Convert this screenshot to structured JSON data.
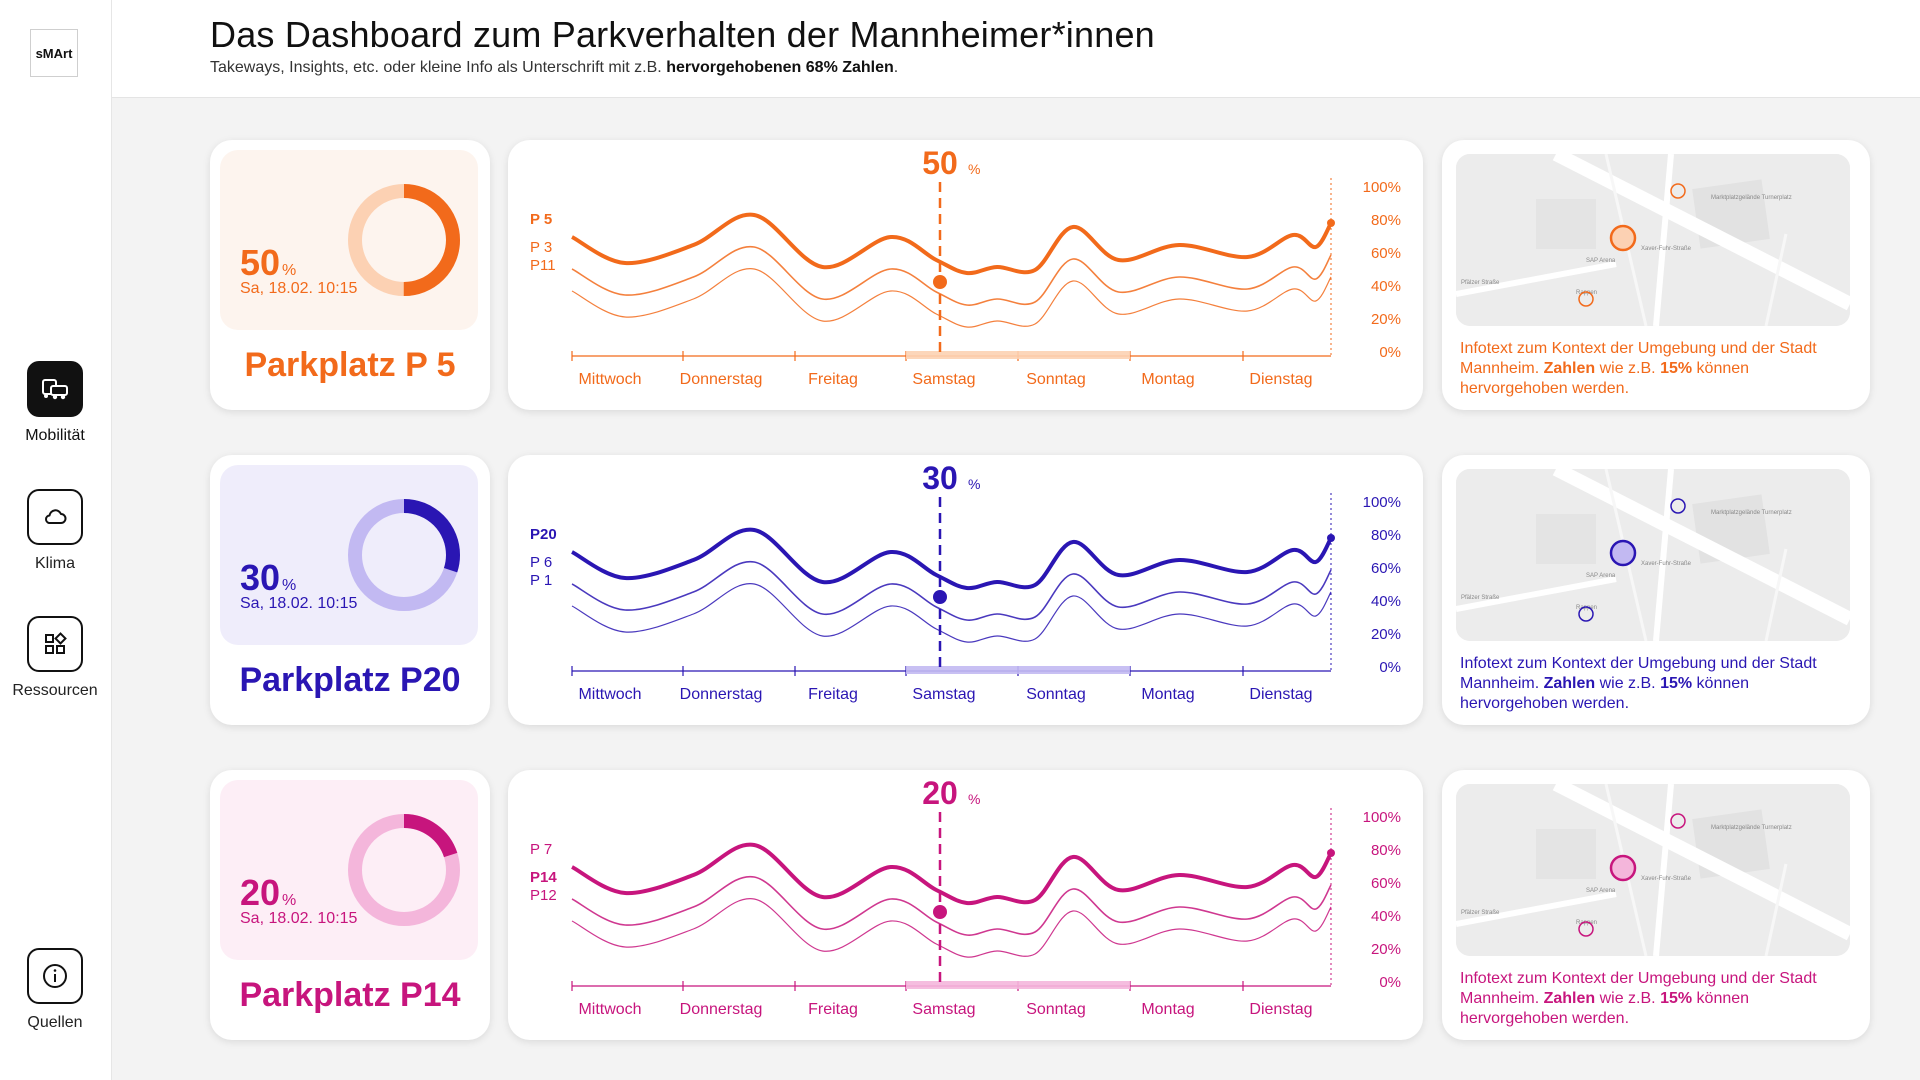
{
  "logo": "sMArt",
  "nav": [
    {
      "label": "Mobilität",
      "icon": "car-icon",
      "active": true
    },
    {
      "label": "Klima",
      "icon": "cloud-icon",
      "active": false
    },
    {
      "label": "Ressourcen",
      "icon": "apps-icon",
      "active": false
    },
    {
      "label": "Quellen",
      "icon": "info-icon",
      "active": false
    }
  ],
  "header": {
    "title": "Das Dashboard zum Parkverhalten der Mannheimer*innen",
    "subtitle_pre": "Takeways, Insights, etc. oder kleine Info als Unterschrift mit z.B.",
    "subtitle_bold": "hervorgehobenen 68% Zahlen",
    "subtitle_post": "."
  },
  "days": [
    "Mittwoch",
    "Donnerstag",
    "Freitag",
    "Samstag",
    "Sonntag",
    "Montag",
    "Dienstag"
  ],
  "yticks": [
    "100%",
    "80%",
    "60%",
    "40%",
    "20%",
    "0%"
  ],
  "rows": [
    {
      "lot": "Parkplatz P 5",
      "value": "50",
      "unit": "%",
      "date": "Sa, 18.02. 10:15",
      "fraction": 0.5,
      "color": "#f26a1b",
      "light": "#fcd1b3",
      "bg": "#fdf4ee",
      "series_labels": [
        "P 5",
        "P 3",
        "P11"
      ],
      "peak_label": "50",
      "peak_unit": "%",
      "info_pre": "Infotext zum Kontext der Umgebung und der Stadt Mannheim.",
      "info_bold1": "Zahlen",
      "info_mid": "wie z.B.",
      "info_bold2": "15%",
      "info_post": "können hervorgehoben werden."
    },
    {
      "lot": "Parkplatz P20",
      "value": "30",
      "unit": "%",
      "date": "Sa, 18.02. 10:15",
      "fraction": 0.3,
      "color": "#2a16b3",
      "light": "#c2b9f2",
      "bg": "#efedfb",
      "series_labels": [
        "P20",
        "P 6",
        "P 1"
      ],
      "peak_label": "30",
      "peak_unit": "%",
      "info_pre": "Infotext zum Kontext der Umgebung und der Stadt Mannheim.",
      "info_bold1": "Zahlen",
      "info_mid": "wie z.B.",
      "info_bold2": "15%",
      "info_post": "können hervorgehoben werden."
    },
    {
      "lot": "Parkplatz P14",
      "value": "20",
      "unit": "%",
      "date": "Sa, 18.02. 10:15",
      "fraction": 0.2,
      "color": "#c7157d",
      "light": "#f4b6db",
      "bg": "#fdeef6",
      "series_labels": [
        "P 7",
        "P14",
        "P12"
      ],
      "peak_label": "20",
      "peak_unit": "%",
      "info_pre": "Infotext zum Kontext der Umgebung und der Stadt Mannheim.",
      "info_bold1": "Zahlen",
      "info_mid": "wie z.B.",
      "info_bold2": "15%",
      "info_post": "können hervorgehoben werden."
    }
  ],
  "map_labels": [
    "Marktplatzgelände Turnerplatz",
    "SAP Arena",
    "Xaver-Fuhr-Straße",
    "Rappen",
    "Pfälzer Straße"
  ]
}
